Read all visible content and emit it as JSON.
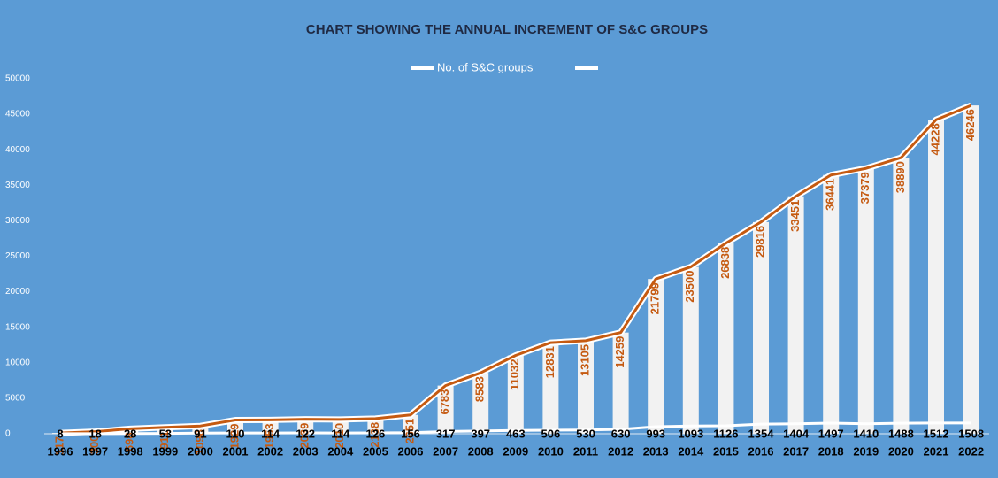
{
  "chart_data": {
    "type": "bar",
    "title": "CHART SHOWING THE ANNUAL INCREMENT OF S&C GROUPS",
    "categories": [
      "1996",
      "1997",
      "1998",
      "1999",
      "2000",
      "2001",
      "2002",
      "2003",
      "2004",
      "2005",
      "2006",
      "2007",
      "2008",
      "2009",
      "2010",
      "2011",
      "2012",
      "2013",
      "2014",
      "2015",
      "2016",
      "2017",
      "2018",
      "2019",
      "2020",
      "2021",
      "2022"
    ],
    "series": [
      {
        "name": "No. of S&C groups",
        "color": "#f2f2f2",
        "line_color": "#c55a11",
        "values": [
          117,
          300,
          698,
          911,
          1098,
          1929,
          1953,
          2039,
          2010,
          2138,
          2651,
          6783,
          8583,
          11032,
          12831,
          13105,
          14259,
          21799,
          23500,
          26838,
          29816,
          33451,
          36441,
          37379,
          38890,
          44228,
          46246
        ]
      },
      {
        "color": "#ffffff",
        "values": [
          8,
          18,
          28,
          53,
          91,
          110,
          114,
          122,
          114,
          126,
          156,
          317,
          397,
          463,
          506,
          530,
          630,
          993,
          1093,
          1126,
          1354,
          1404,
          1497,
          1410,
          1488,
          1512,
          1508
        ]
      }
    ],
    "ylim": [
      0,
      50000
    ],
    "yticks": [
      0,
      5000,
      10000,
      15000,
      20000,
      25000,
      30000,
      35000,
      40000,
      45000,
      50000
    ]
  }
}
